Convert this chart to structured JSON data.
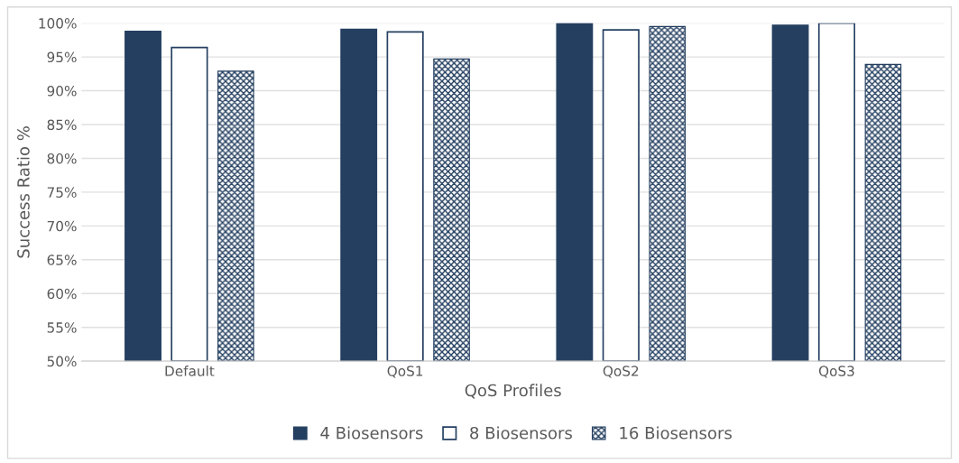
{
  "chart_data": {
    "type": "bar",
    "xlabel": "QoS Profiles",
    "ylabel": "Success Ratio %",
    "categories": [
      "Default",
      "QoS1",
      "QoS2",
      "QoS3"
    ],
    "series": [
      {
        "name": "4 Biosensors",
        "color": "#243f60",
        "values": [
          98.8,
          99.1,
          100,
          99.7
        ]
      },
      {
        "name": "8 Biosensors",
        "color": "#243f60",
        "values": [
          96.4,
          98.7,
          99.0,
          100
        ]
      },
      {
        "name": "16 Biosensors",
        "color": "#243f60",
        "values": [
          92.9,
          94.7,
          99.5,
          93.9
        ]
      }
    ],
    "ylim": [
      50,
      100
    ],
    "yticks": [
      {
        "value": 50,
        "label": "50%"
      },
      {
        "value": 55,
        "label": "55%"
      },
      {
        "value": 60,
        "label": "60%"
      },
      {
        "value": 65,
        "label": "65%"
      },
      {
        "value": 70,
        "label": "70%"
      },
      {
        "value": 75,
        "label": "75%"
      },
      {
        "value": 80,
        "label": "80%"
      },
      {
        "value": 85,
        "label": "85%"
      },
      {
        "value": 90,
        "label": "90%"
      },
      {
        "value": 95,
        "label": "95%"
      },
      {
        "value": 100,
        "label": "100%"
      }
    ],
    "grid": "y",
    "legend": "bottom"
  }
}
